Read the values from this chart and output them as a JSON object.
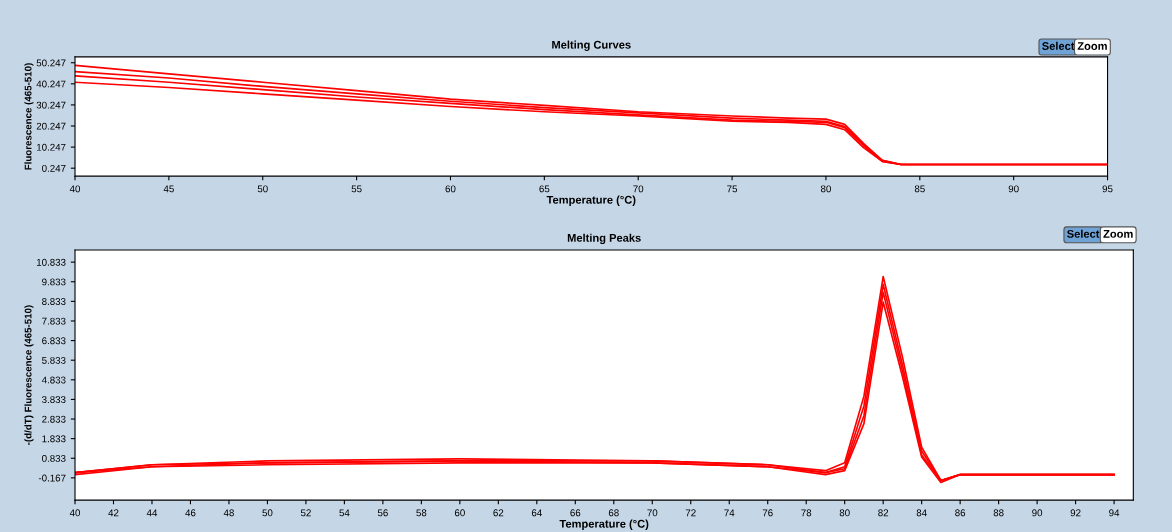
{
  "chart_data": [
    {
      "type": "line",
      "title": "Melting Curves",
      "xlabel": "Temperature (°C)",
      "ylabel": "Fluorescence (465-510)",
      "xlim": [
        40,
        95
      ],
      "xticks": [
        40,
        45,
        50,
        55,
        60,
        65,
        70,
        75,
        80,
        85,
        90,
        95
      ],
      "ylim": [
        -3.5,
        53
      ],
      "yticks": [
        0.247,
        10.247,
        20.247,
        30.247,
        40.247,
        50.247
      ],
      "grid": false,
      "legend": false,
      "marker": "none",
      "line_style": "solid",
      "annotations": [
        "Select",
        "Zoom"
      ],
      "series": [
        {
          "color": "#ff0000",
          "x": [
            40,
            45,
            50,
            55,
            60,
            65,
            70,
            75,
            78,
            80,
            81,
            82,
            83,
            84,
            85,
            90,
            95
          ],
          "values": [
            49,
            45,
            41,
            37,
            33,
            30,
            27,
            25,
            24,
            23.5,
            21,
            12,
            4,
            2,
            2,
            2,
            2
          ]
        },
        {
          "color": "#ff0000",
          "x": [
            40,
            45,
            50,
            55,
            60,
            65,
            70,
            75,
            78,
            80,
            81,
            82,
            83,
            84,
            85,
            90,
            95
          ],
          "values": [
            46,
            43,
            39,
            35.5,
            32,
            29,
            26.5,
            24,
            23,
            22.5,
            20,
            11.5,
            4,
            2,
            2,
            2,
            2
          ]
        },
        {
          "color": "#ff0000",
          "x": [
            40,
            45,
            50,
            55,
            60,
            65,
            70,
            75,
            78,
            80,
            81,
            82,
            83,
            84,
            85,
            90,
            95
          ],
          "values": [
            44,
            41,
            37.5,
            34,
            31,
            28,
            25.5,
            23,
            22.5,
            22,
            19.5,
            11,
            3.5,
            2,
            2,
            2,
            2
          ]
        },
        {
          "color": "#ff0000",
          "x": [
            40,
            45,
            50,
            55,
            60,
            65,
            70,
            75,
            78,
            80,
            81,
            82,
            83,
            84,
            85,
            90,
            95
          ],
          "values": [
            41,
            38.5,
            35.5,
            32.5,
            29.5,
            27,
            25,
            22.5,
            22,
            21,
            18.5,
            10,
            3.5,
            2,
            2,
            2,
            2
          ]
        }
      ]
    },
    {
      "type": "line",
      "title": "Melting Peaks",
      "xlabel": "Temperature (°C)",
      "ylabel": "-(d/dT) Fluorescence (465-510)",
      "xlim": [
        40,
        95
      ],
      "xticks": [
        40,
        42,
        44,
        46,
        48,
        50,
        52,
        54,
        56,
        58,
        60,
        62,
        64,
        66,
        68,
        70,
        72,
        74,
        76,
        78,
        80,
        82,
        84,
        86,
        88,
        90,
        92,
        94
      ],
      "ylim": [
        -1.3,
        11.45
      ],
      "yticks": [
        -0.167,
        0.833,
        1.833,
        2.833,
        3.833,
        4.833,
        5.833,
        6.833,
        7.833,
        8.833,
        9.833,
        10.833
      ],
      "grid": false,
      "legend": false,
      "marker": "none",
      "line_style": "solid",
      "annotations": [
        "Select",
        "Zoom"
      ],
      "series": [
        {
          "color": "#ff0000",
          "x": [
            40,
            44,
            50,
            60,
            70,
            76,
            79,
            80,
            81,
            82,
            83,
            84,
            85,
            86,
            90,
            94
          ],
          "values": [
            0.1,
            0.5,
            0.7,
            0.8,
            0.7,
            0.5,
            0.2,
            0.6,
            4,
            10.1,
            6,
            1.4,
            -0.3,
            0,
            0,
            0
          ]
        },
        {
          "color": "#ff0000",
          "x": [
            40,
            44,
            50,
            60,
            70,
            76,
            79,
            80,
            81,
            82,
            83,
            84,
            85,
            86,
            90,
            94
          ],
          "values": [
            0.1,
            0.5,
            0.6,
            0.7,
            0.7,
            0.5,
            0.1,
            0.4,
            3.5,
            9.7,
            5.6,
            1.2,
            -0.3,
            0,
            0,
            0
          ]
        },
        {
          "color": "#ff0000",
          "x": [
            40,
            44,
            50,
            60,
            70,
            76,
            79,
            80,
            81,
            82,
            83,
            84,
            85,
            86,
            90,
            94
          ],
          "values": [
            0.1,
            0.4,
            0.6,
            0.7,
            0.6,
            0.4,
            0.1,
            0.3,
            3.0,
            9.3,
            5.3,
            1.0,
            -0.3,
            0,
            0,
            0
          ]
        },
        {
          "color": "#ff0000",
          "x": [
            40,
            44,
            50,
            60,
            70,
            76,
            79,
            80,
            81,
            82,
            83,
            84,
            85,
            86,
            90,
            94
          ],
          "values": [
            0.0,
            0.4,
            0.5,
            0.6,
            0.6,
            0.4,
            0.0,
            0.2,
            2.6,
            8.8,
            5.0,
            0.9,
            -0.4,
            0,
            0,
            0
          ]
        }
      ]
    }
  ]
}
